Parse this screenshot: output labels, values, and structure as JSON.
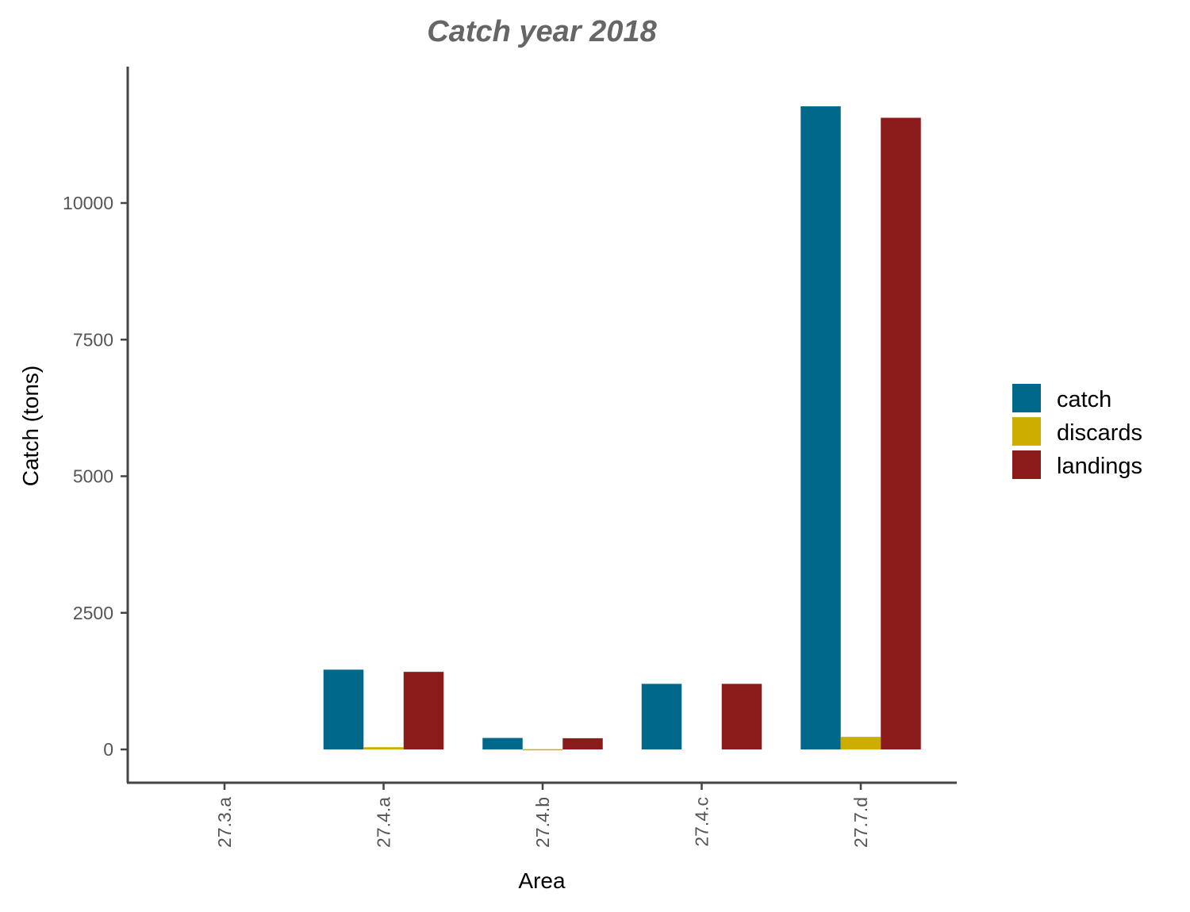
{
  "chart_data": {
    "type": "bar",
    "title": "Catch year 2018",
    "xlabel": "Area",
    "ylabel": "Catch (tons)",
    "categories": [
      "27.3.a",
      "27.4.a",
      "27.4.b",
      "27.4.c",
      "27.7.d"
    ],
    "ylim": [
      -600,
      12500
    ],
    "yticks": [
      0,
      2500,
      5000,
      7500,
      10000
    ],
    "ytick_labels": [
      "0",
      "2500",
      "5000",
      "7500",
      "10000"
    ],
    "grid": false,
    "legend_position": "right",
    "series": [
      {
        "name": "catch",
        "color": "#00688b",
        "values": [
          0,
          1460,
          210,
          1200,
          11770
        ]
      },
      {
        "name": "discards",
        "color": "#cdad00",
        "values": [
          0,
          40,
          5,
          0,
          230
        ]
      },
      {
        "name": "landings",
        "color": "#8b1a1a",
        "values": [
          0,
          1420,
          205,
          1200,
          11560
        ]
      }
    ]
  }
}
